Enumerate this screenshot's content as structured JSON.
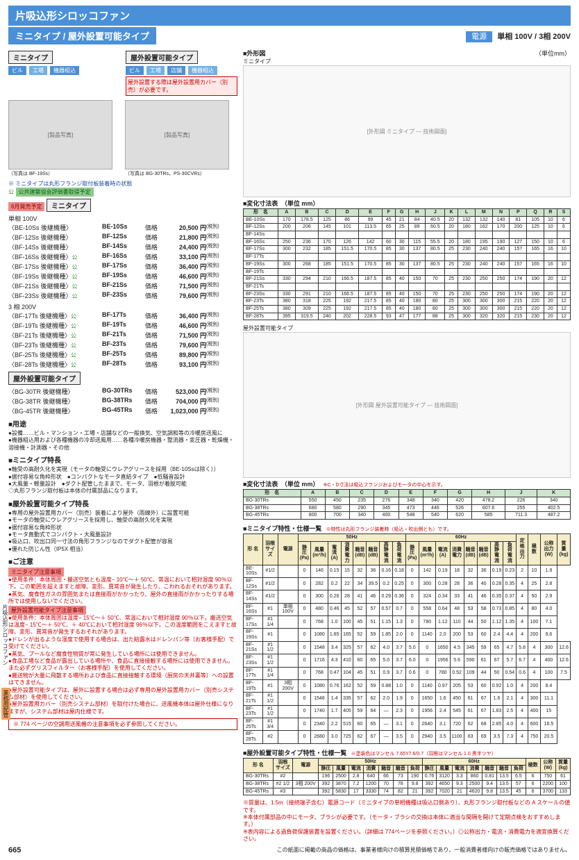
{
  "title": "片吸込形シロッコファン",
  "subtitle": "ミニタイプ / 屋外設置可能タイプ",
  "power": {
    "label": "電源",
    "spec": "単相 100V / 3相 200V"
  },
  "box_left": {
    "title": "ミニタイプ",
    "tags": [
      "ビル",
      "工場",
      "機器組込"
    ]
  },
  "box_right": {
    "title": "屋外設置可能タイプ",
    "tags": [
      "ビル",
      "工場",
      "店舗",
      "機器組込"
    ],
    "warn": "屋外設置する際は屋外設置用カバー（別売）が必要です。"
  },
  "photo_cap1": "（写真は BF-19Ss）",
  "photo_cap2": "（写真は BG-30TRs、PS-30CVRs）",
  "photo_note": "※ ミニタイプは丸形フランジ取付板装着時の状態",
  "cert": "公共建築協会評価書取得予定",
  "release": "6月発売予定",
  "sec_mini": "ミニタイプ",
  "sec_out": "屋外設置可能タイプ",
  "phase1": "単相 100V",
  "phase2": "3 相 200V",
  "prices1": [
    {
      "m": "〈BE-10Ss 後継機種〉",
      "n": "BE-10Ss",
      "p": "20,500"
    },
    {
      "m": "〈BF-12Ss 後継機種〉",
      "n": "BF-12Ss",
      "p": "21,800"
    },
    {
      "m": "〈BF-14Ss 後継機種〉",
      "n": "BF-14Ss",
      "p": "24,400"
    },
    {
      "m": "〈BF-16Ss 後継機種〉",
      "g": "1",
      "n": "BF-16Ss",
      "p": "33,100"
    },
    {
      "m": "〈BF-17Ss 後継機種〉",
      "g": "1",
      "n": "BF-17Ss",
      "p": "36,400"
    },
    {
      "m": "〈BF-19Ss 後継機種〉",
      "g": "1",
      "n": "BF-19Ss",
      "p": "46,600"
    },
    {
      "m": "〈BF-21Ss 後継機種〉",
      "g": "1",
      "n": "BF-21Ss",
      "p": "71,500"
    },
    {
      "m": "〈BF-23Ss 後継機種〉",
      "g": "1",
      "n": "BF-23Ss",
      "p": "79,600"
    }
  ],
  "prices2": [
    {
      "m": "〈BF-17Ts 後継機種〉",
      "g": "1",
      "n": "BF-17Ts",
      "p": "36,400"
    },
    {
      "m": "〈BF-19Ts 後継機種〉",
      "g": "1",
      "n": "BF-19Ts",
      "p": "46,600"
    },
    {
      "m": "〈BF-21Ts 後継機種〉",
      "g": "1",
      "n": "BF-21Ts",
      "p": "71,500"
    },
    {
      "m": "〈BF-23Ts 後継機種〉",
      "g": "1",
      "n": "BF-23Ts",
      "p": "79,600"
    },
    {
      "m": "〈BF-25Ts 後継機種〉",
      "g": "1",
      "n": "BF-25Ts",
      "p": "89,800"
    },
    {
      "m": "〈BF-28Ts 後継機種〉",
      "g": "1",
      "n": "BF-28Ts",
      "p": "93,100"
    }
  ],
  "prices3": [
    {
      "m": "〈BG-30TR 後継機種〉",
      "n": "BG-30TRs",
      "p": "523,000"
    },
    {
      "m": "〈BG-38TR 後継機種〉",
      "n": "BG-38TRs",
      "p": "704,000"
    },
    {
      "m": "〈BG-45TR 後継機種〉",
      "n": "BG-45TRs",
      "p": "1,023,000"
    }
  ],
  "use_h": "■用途",
  "use_t": "●設備……ビル・マンション・工場・店舗などの一般換気、空気調和等の冷暖房送風に\n●機器組込用および各種機器の冷却送風用……各種冷暖房機器・整流器・変圧器・乾燥機・溶接機・計測器・その他",
  "feat1_h": "■ミニタイプ特長",
  "feat1_t": "●軸受の高耐久化を実現（モータの軸受にウレアグリースを採用（BE-10Ssは除く））\n●据付容易な角枠形状　●コンパクトなモータ直結タイプ　●低騒音設計\n●大風量・軽量設計　●ダクト配管したままで、モータ、羽根が着脱可能\n◇丸形フランジ取付板は本体の付属部品になります。",
  "feat2_h": "■屋外設置可能タイプ特長",
  "feat2_t": "●専用の屋外設置用カバー（別売）装着により屋外（雨線外）に設置可能\n●モータの軸受にウレアグリースを採用し、軸受の高耐久化を実現\n●据付容易な角枠形状\n●モータ直動式でコンパクト・大風量設計\n●吸込口、吹出口同一寸法の角形フランジなのでダクト配管が容易\n●優れた防じん性（IP5X 相当）",
  "caution_h": "■ご注意",
  "caut1_h": "ミニタイプ注意事項",
  "caut1_t": "●使用条件：本体周囲・搬送空気とも温度− 10℃〜＋ 50℃、常温において相対湿度 90％以下。この範囲を超えますと故障、変形、異常音が発生したり、こわれるおそれがあります。\n●蒸気、腐食性ガスの雰囲気または直接雨がかかったり、屋外の直接雨がかかったりする場所では使用しないでください。",
  "caut2_h": "屋外設置可能タイプ注意事項",
  "caut2_t": "●使用条件：本体周囲は温度− 15℃〜＋ 50℃、常温において相対湿度 90％以下。搬送空気は温度− 15℃〜＋ 50℃、＋ 40℃において相対湿度 96％以下。この温度範囲をこえますと故障、変形、異常音が発生するおそれがあります。\n●ドレンが出るような湿度で使用する場合は、出た結露水はドレンパン等（お客様手配）で受けてください。\n●蒸気、プールなど腐食性物質が常に発生している場所には使用できません。\n●食品工場など食品が露出している場所や、食品に直接接触する場所には使用できません。また必ずグリスフィルター（お客様手配）を使用してください。\n●搬送物が大量に飛散する場所および食品に直接接触する環境（厨房の天井裏等）への設置はできません。\n●屋外設置可能タイプは、屋外に設置する場合は必ず専用の屋外設置用カバー（別売システム部材）を使用してください。\n●屋外設置用カバー（別売システム部材）を取付けた場合に、送風機本体は屋外仕様になりますが、システム部材は屋内仕様です。",
  "bottom_warn": "※ 774 ページの空調用送風機の注意事項を必ず参照してください。",
  "dia1_h": "■外形図",
  "dia1_l": "ミニタイプ",
  "dia_unit": "（単位mm）",
  "dim1_h": "■変化寸法表　（単位 mm）",
  "dim1_cols": [
    "形　名",
    "A",
    "B",
    "C",
    "D",
    "E",
    "F",
    "G",
    "H",
    "J",
    "K",
    "L",
    "M",
    "N",
    "P",
    "Q",
    "R",
    "S"
  ],
  "dim1": [
    [
      "BE-10Ss",
      "170",
      "178.5",
      "125",
      "86",
      "99",
      "45",
      "21",
      "84",
      "40.5",
      "20",
      "132",
      "132",
      "140",
      "81",
      "105",
      "10",
      "6"
    ],
    [
      "BF-12Ss",
      "200",
      "206",
      "145",
      "101",
      "113.5",
      "65",
      "25",
      "89",
      "60.5",
      "20",
      "180",
      "162",
      "170",
      "200",
      "125",
      "10",
      "6"
    ],
    [
      "BF-14Ss",
      "",
      "",
      "",
      "",
      "",
      "",
      "",
      "",
      "",
      "",
      "",
      "",
      "",
      "",
      "",
      "",
      ""
    ],
    [
      "BF-16Ss",
      "250",
      "236",
      "170",
      "126",
      "142",
      "60",
      "30",
      "115",
      "55.5",
      "20",
      "180",
      "195",
      "190",
      "127",
      "150",
      "10",
      "6"
    ],
    [
      "BF-17Ss",
      "300",
      "232",
      "185",
      "151.5",
      "170.5",
      "85",
      "30",
      "137",
      "80.5",
      "25",
      "230",
      "240",
      "240",
      "157",
      "165",
      "16",
      "10"
    ],
    [
      "BF-17Ts",
      "",
      "",
      "",
      "",
      "",
      "",
      "",
      "",
      "",
      "",
      "",
      "",
      "",
      "",
      "",
      "",
      ""
    ],
    [
      "BF-19Ss",
      "300",
      "268",
      "185",
      "151.5",
      "170.5",
      "85",
      "30",
      "137",
      "80.5",
      "25",
      "230",
      "240",
      "240",
      "157",
      "165",
      "16",
      "10"
    ],
    [
      "BF-19Ts",
      "",
      "",
      "",
      "",
      "",
      "",
      "",
      "",
      "",
      "",
      "",
      "",
      "",
      "",
      "",
      "",
      ""
    ],
    [
      "BF-21Ss",
      "330",
      "294",
      "210",
      "166.5",
      "187.5",
      "85",
      "40",
      "150",
      "70",
      "25",
      "230",
      "250",
      "250",
      "174",
      "190",
      "20",
      "12"
    ],
    [
      "BF-21Ts",
      "",
      "",
      "",
      "",
      "",
      "",
      "",
      "",
      "",
      "",
      "",
      "",
      "",
      "",
      "",
      "",
      ""
    ],
    [
      "BF-23Ss",
      "330",
      "291",
      "210",
      "166.5",
      "187.5",
      "85",
      "40",
      "150",
      "70",
      "25",
      "230",
      "250",
      "250",
      "174",
      "190",
      "20",
      "12"
    ],
    [
      "BF-23Ts",
      "380",
      "318",
      "225",
      "192",
      "217.5",
      "85",
      "40",
      "180",
      "80",
      "25",
      "300",
      "300",
      "300",
      "215",
      "220",
      "20",
      "12"
    ],
    [
      "BF-25Ts",
      "380",
      "309",
      "225",
      "192",
      "217.5",
      "85",
      "40",
      "180",
      "80",
      "25",
      "300",
      "300",
      "300",
      "215",
      "220",
      "20",
      "12"
    ],
    [
      "BF-28Ts",
      "395",
      "319.5",
      "240",
      "202",
      "228.5",
      "93",
      "47",
      "177",
      "88",
      "25",
      "300",
      "320",
      "320",
      "215",
      "230",
      "20",
      "12"
    ]
  ],
  "dia2_l": "屋外設置可能タイプ",
  "dim2_h": "■変化寸法表　（単位 mm）",
  "dim2_note": "※C・D寸法は吸込フランジおよびモータの中心を示す。",
  "dim2_cols": [
    "形　名",
    "A",
    "B",
    "C",
    "D",
    "E",
    "F",
    "G",
    "H",
    "J",
    "K"
  ],
  "dim2": [
    [
      "BG-30TRs",
      "550",
      "450",
      "235",
      "276",
      "348",
      "340",
      "420",
      "478.2",
      "226",
      "340"
    ],
    [
      "BG-38TRs",
      "680",
      "580",
      "290",
      "345",
      "473",
      "446",
      "526",
      "607.6",
      "255",
      "402.5"
    ],
    [
      "BG-45TRs",
      "800",
      "700",
      "340",
      "400",
      "548",
      "540",
      "620",
      "585",
      "711.3",
      "487.2"
    ]
  ],
  "spec1_h": "■ミニタイプ特性・仕様一覧",
  "spec1_note": "※特性は丸形フランジ装着時（吸込・吹出側とも）です。",
  "spec1_cols": [
    "形 名",
    "羽根サイズ（番手）",
    "電源",
    "50Hz",
    "",
    "",
    "",
    "",
    "",
    "",
    "",
    "60Hz",
    "",
    "",
    "",
    "",
    "",
    "",
    "",
    "定格出力(W)",
    "極数(W)",
    "公称出力(W)",
    "質量(kg)"
  ],
  "spec1_sub": [
    "",
    "",
    "",
    "静圧(Pa)",
    "左記静圧時",
    "",
    "",
    "",
    "",
    "高静圧(Pa)",
    "",
    "静圧(Pa)",
    "左記静圧時",
    "",
    "",
    "",
    "",
    "高静圧(Pa)",
    "",
    "",
    "",
    "",
    ""
  ],
  "spec1": [
    [
      "BE-10Ss",
      "#1/2",
      "",
      "0",
      "146",
      "0.15",
      "15",
      "32",
      "36",
      "0.16",
      "0.18",
      "0",
      "142",
      "0.19",
      "18",
      "32",
      "36",
      "0.19",
      "0.23",
      "2",
      "10",
      "1.9"
    ],
    [
      "BF-12Ss",
      "#1/2",
      "",
      "0",
      "282",
      "0.2",
      "22",
      "34",
      "39.5",
      "0.2",
      "0.25",
      "0",
      "300",
      "0.28",
      "28",
      "36",
      "40",
      "0.28",
      "0.35",
      "4",
      "25",
      "2.8"
    ],
    [
      "BF-14Ss",
      "#1/2",
      "",
      "0",
      "300",
      "0.26",
      "28",
      "41",
      "46",
      "0.29",
      "0.36",
      "0",
      "324",
      "0.34",
      "33",
      "41",
      "46",
      "0.35",
      "0.37",
      "4",
      "50",
      "2.9"
    ],
    [
      "BF-16Ss",
      "#1",
      "単相 100V",
      "0",
      "480",
      "0.46",
      "45",
      "52",
      "57",
      "0.57",
      "0.7",
      "0",
      "558",
      "0.64",
      "48",
      "53",
      "58",
      "0.73",
      "0.85",
      "4",
      "80",
      "4.0"
    ],
    [
      "BF-17Ss",
      "#1 1/4",
      "",
      "0",
      "768",
      "1.0",
      "100",
      "45",
      "51",
      "1.15",
      "1.3",
      "0",
      "780",
      "1.12",
      "110",
      "44",
      "50",
      "1.12",
      "1.35",
      "4",
      "100",
      "7.1"
    ],
    [
      "BF-19Ss",
      "#1",
      "",
      "0",
      "1080",
      "1.65",
      "165",
      "52",
      "59",
      "1.85",
      "2.0",
      "0",
      "1140",
      "2.0",
      "200",
      "53",
      "60",
      "2.4",
      "4.4",
      "4",
      "200",
      "9.6"
    ],
    [
      "BF-21Ss",
      "#1 1/2",
      "",
      "0",
      "1548",
      "3.4",
      "325",
      "57",
      "62",
      "4.0",
      "3.7",
      "5.0",
      "0",
      "1650",
      "4.5",
      "345",
      "59",
      "65",
      "4.7",
      "5.8",
      "4",
      "300",
      "12.6"
    ],
    [
      "BF-23Ss",
      "#1 1/2",
      "",
      "0",
      "1716",
      "4.3",
      "410",
      "60",
      "65",
      "5.0",
      "3.7",
      "6.0",
      "0",
      "1956",
      "5.6",
      "590",
      "61",
      "67",
      "5.7",
      "6.7",
      "4",
      "400",
      "12.6"
    ],
    [
      "BF-17Ts",
      "#1 1/4",
      "",
      "0",
      "768",
      "0.47",
      "104",
      "45",
      "51",
      "0.9",
      "3.7",
      "0.6",
      "0",
      "780",
      "0.52",
      "109",
      "44",
      "50",
      "0.54",
      "0.6",
      "4",
      "100",
      "7.5"
    ],
    [
      "BF-19Ts",
      "#1",
      "3相 200V",
      "0",
      "1080",
      "0.76",
      "162",
      "52",
      "59",
      "0.88",
      "1.0",
      "0",
      "1140",
      "0.97",
      "205",
      "53",
      "60",
      "0.92",
      "1.0",
      "4",
      "200",
      "8.4"
    ],
    [
      "BF-21Ts",
      "#1 1/2",
      "",
      "0",
      "1548",
      "1.4",
      "335",
      "57",
      "62",
      "2.0",
      "1.9",
      "0",
      "1650",
      "1.6",
      "450",
      "61",
      "67",
      "1.6",
      "2.1",
      "4",
      "300",
      "11.1"
    ],
    [
      "BF-23Ts",
      "#1 1/2",
      "",
      "0",
      "1740",
      "1.7",
      "405",
      "59",
      "64",
      "—",
      "2.3",
      "0",
      "1956",
      "2.4",
      "545",
      "61",
      "67",
      "1.83",
      "2.5",
      "4",
      "400",
      "15"
    ],
    [
      "BF-25Ts",
      "#1 3/4",
      "",
      "0",
      "2340",
      "2.2",
      "515",
      "60",
      "65",
      "—",
      "3.1",
      "0",
      "2640",
      "3.1",
      "720",
      "62",
      "68",
      "2.85",
      "4.0",
      "4",
      "600",
      "16.5"
    ],
    [
      "BF-28Ts",
      "#2",
      "",
      "0",
      "2680",
      "3.0",
      "725",
      "62",
      "67",
      "—",
      "3.5",
      "0",
      "2940",
      "3.5",
      "1100",
      "63",
      "69",
      "3.5",
      "7.3",
      "4",
      "750",
      "20.5"
    ]
  ],
  "spec2_h": "■屋外設置可能タイプ特性・仕様一覧",
  "spec2_note": "※塗装色はマンセル 7.65Y7.6/0.7（羽根はマンセル 1.0 黒半ツヤ）",
  "spec2": [
    [
      "BG-30TRs",
      "#2",
      "",
      "196",
      "2500",
      "2.8",
      "640",
      "66",
      "73",
      "190",
      "0.76",
      "3120",
      "3.3",
      "860",
      "0.81",
      "13.5",
      "6.5",
      "6",
      "750",
      "61"
    ],
    [
      "BG-38TRs",
      "#2 1/2",
      "3相 200V",
      "392",
      "3870",
      "7.2",
      "1200",
      "70",
      "78",
      "9.8",
      "392",
      "4650",
      "9.3",
      "2500",
      "9.4",
      "13.5",
      "57",
      "6",
      "2200",
      "100"
    ],
    [
      "BG-45TRs",
      "#3",
      "",
      "392",
      "5830",
      "17",
      "3330",
      "74",
      "82",
      "21",
      "392",
      "7020",
      "21",
      "4620",
      "9.8",
      "13.5",
      "45",
      "6",
      "3700",
      "133"
    ]
  ],
  "foot_notes": "※質量は、1.5m（接続端子含む）電源コード（ミニタイプの単相機種は吸込口側あり）、丸形フランジ取付板などの A スケールの値です。\n※本体付属部品の中にモータ、ブラシが必要です。（モータ・ブラシの交換は本体に適当な間隔を開けて定期点検をおすすめします。）\n※表内容による過負荷保護装置を設置ください。（詳細は 774ページを参照ください。）◎公称出力・電流・消費電力を適宜換算ください。",
  "sidetab1": "片吸込形シロッコファン",
  "sidetab2": "業務用配管",
  "page_num": "665",
  "footer": "この紙面に掲載の商品の価格は、事業者様向けの積算見積価格であり、一般消費者様向けの販売価格ではありません。"
}
